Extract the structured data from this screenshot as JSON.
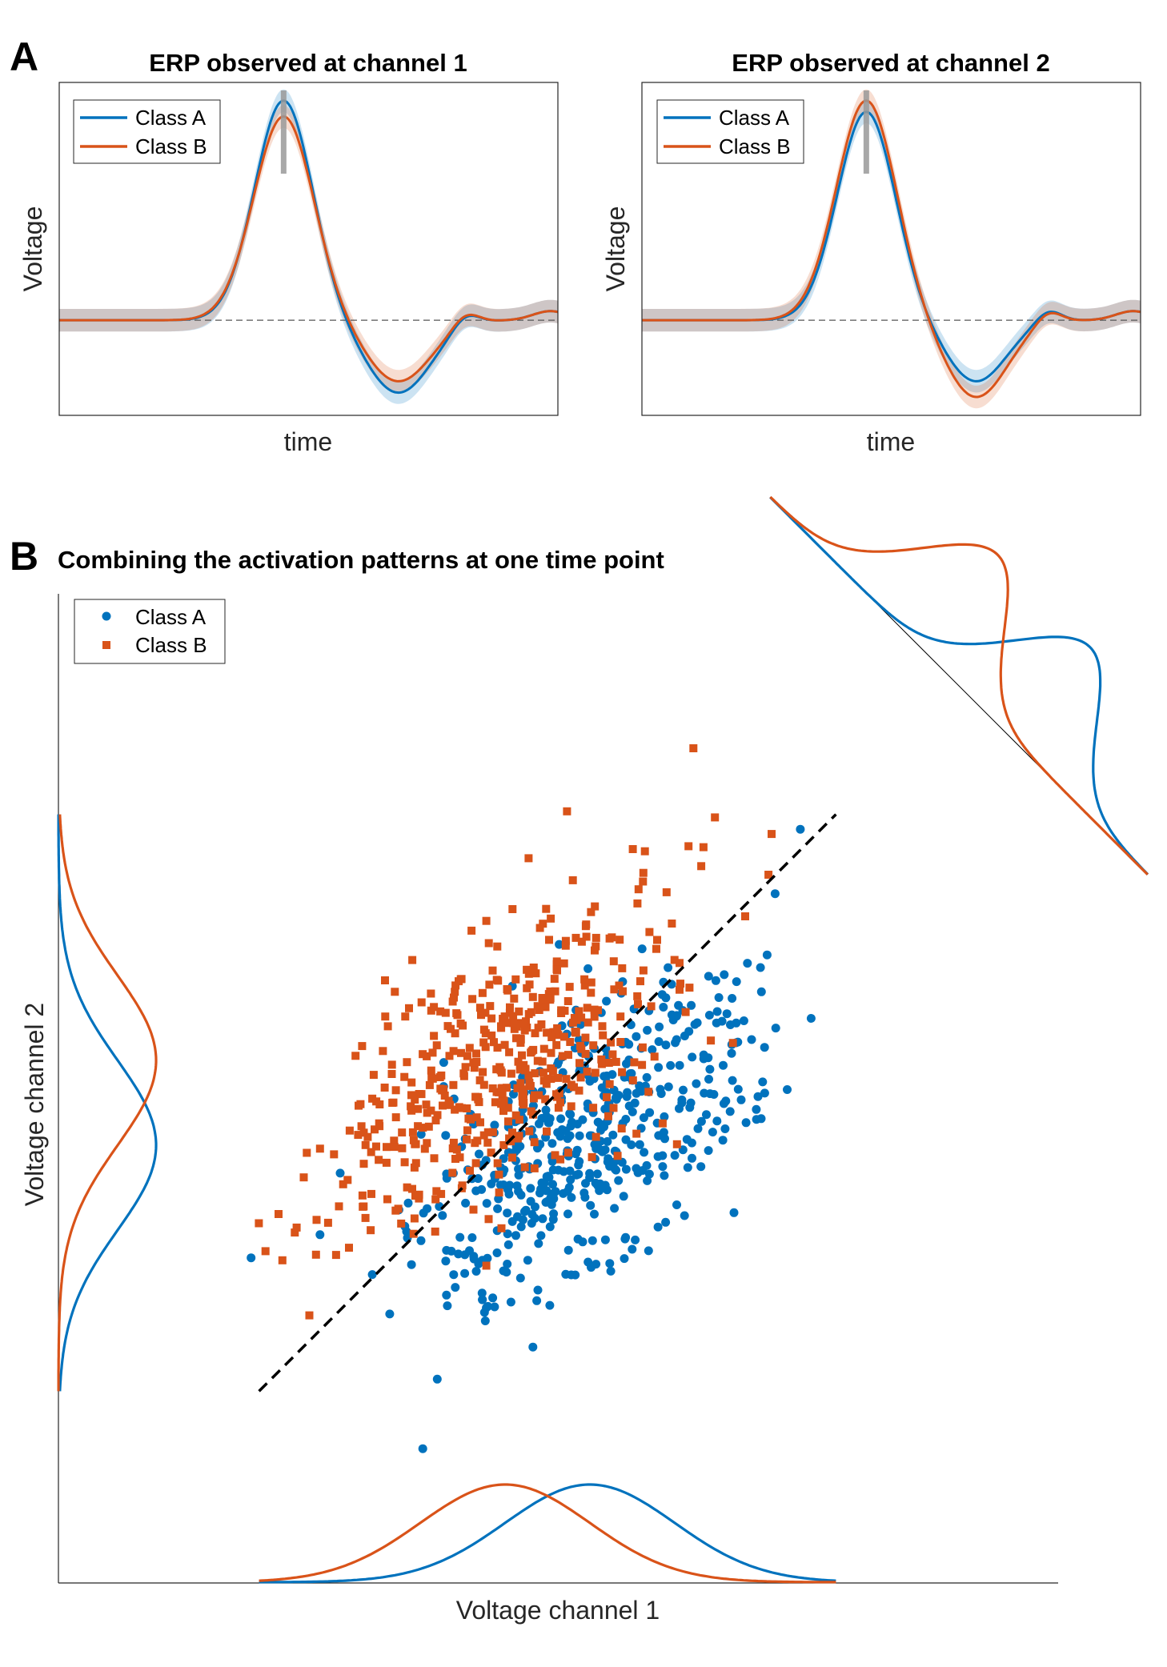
{
  "figure": {
    "panel_a": {
      "letter": "A",
      "charts": [
        {
          "title": "ERP observed at channel 1",
          "xlabel": "time",
          "ylabel": "Voltage"
        },
        {
          "title": "ERP observed at channel 2",
          "xlabel": "time",
          "ylabel": "Voltage"
        }
      ]
    },
    "panel_b": {
      "letter": "B",
      "title": "Combining the activation patterns at one time point",
      "xlabel": "Voltage channel 1",
      "ylabel": "Voltage channel 2"
    }
  },
  "colors": {
    "class_a": "#0072BD",
    "class_b": "#D95319",
    "marker_line": "#999999",
    "baseline": "#555555"
  },
  "chart_data": [
    {
      "type": "line",
      "title": "ERP observed at channel 1",
      "xlabel": "time",
      "ylabel": "Voltage",
      "x_ticks_shown": false,
      "y_ticks_shown": false,
      "xlim": [
        0,
        1
      ],
      "ylim": [
        -0.42,
        1.05
      ],
      "grid": false,
      "legend": "top-left",
      "baseline": 0,
      "marker_time": 0.45,
      "series": [
        {
          "name": "Class A",
          "color": "#0072BD",
          "peaks": [
            {
              "t": 0.45,
              "amp": 0.97,
              "width": 0.058
            },
            {
              "t": 0.68,
              "amp": -0.32,
              "width": 0.065
            },
            {
              "t": 0.815,
              "amp": 0.05,
              "width": 0.025
            },
            {
              "t": 0.985,
              "amp": 0.04,
              "width": 0.035
            }
          ],
          "band": 0.05
        },
        {
          "name": "Class B",
          "color": "#D95319",
          "peaks": [
            {
              "t": 0.45,
              "amp": 0.9,
              "width": 0.06
            },
            {
              "t": 0.68,
              "amp": -0.27,
              "width": 0.065
            },
            {
              "t": 0.815,
              "amp": 0.05,
              "width": 0.025
            },
            {
              "t": 0.985,
              "amp": 0.04,
              "width": 0.035
            }
          ],
          "band": 0.05
        }
      ]
    },
    {
      "type": "line",
      "title": "ERP observed at channel 2",
      "xlabel": "time",
      "ylabel": "Voltage",
      "x_ticks_shown": false,
      "y_ticks_shown": false,
      "xlim": [
        0,
        1
      ],
      "ylim": [
        -0.42,
        1.05
      ],
      "grid": false,
      "legend": "top-left",
      "baseline": 0,
      "marker_time": 0.45,
      "series": [
        {
          "name": "Class A",
          "color": "#0072BD",
          "peaks": [
            {
              "t": 0.45,
              "amp": 0.92,
              "width": 0.058
            },
            {
              "t": 0.67,
              "amp": -0.27,
              "width": 0.06
            },
            {
              "t": 0.815,
              "amp": 0.05,
              "width": 0.025
            },
            {
              "t": 0.985,
              "amp": 0.04,
              "width": 0.035
            }
          ],
          "band": 0.05
        },
        {
          "name": "Class B",
          "color": "#D95319",
          "peaks": [
            {
              "t": 0.45,
              "amp": 0.97,
              "width": 0.06
            },
            {
              "t": 0.67,
              "amp": -0.34,
              "width": 0.062
            },
            {
              "t": 0.815,
              "amp": 0.05,
              "width": 0.025
            },
            {
              "t": 0.985,
              "amp": 0.04,
              "width": 0.035
            }
          ],
          "band": 0.05
        }
      ]
    },
    {
      "type": "scatter",
      "title": "Combining the activation patterns at one time point",
      "xlabel": "Voltage channel 1",
      "ylabel": "Voltage channel 2",
      "x_ticks_shown": false,
      "y_ticks_shown": false,
      "xlim": [
        -4.3,
        4.3
      ],
      "ylim": [
        -4.3,
        4.3
      ],
      "legend": "top-left",
      "decision_boundary": {
        "from": [
          -3.4,
          -3.4
        ],
        "to": [
          3.4,
          3.4
        ],
        "style": "dashed"
      },
      "series": [
        {
          "name": "Class A",
          "color": "#0072BD",
          "marker": "circle",
          "n": 500,
          "mean": [
            0.5,
            -0.5
          ],
          "sd": [
            1.0,
            1.0
          ],
          "corr": 0.62
        },
        {
          "name": "Class B",
          "color": "#D95319",
          "marker": "square",
          "n": 500,
          "mean": [
            -0.5,
            0.5
          ],
          "sd": [
            1.0,
            1.0
          ],
          "corr": 0.62
        }
      ],
      "marginals": {
        "x": [
          {
            "name": "Class A",
            "mean": 0.5,
            "sd": 1.0
          },
          {
            "name": "Class B",
            "mean": -0.5,
            "sd": 1.0
          }
        ],
        "y": [
          {
            "name": "Class A",
            "mean": -0.5,
            "sd": 1.0
          },
          {
            "name": "Class B",
            "mean": 0.5,
            "sd": 1.0
          }
        ],
        "projection": [
          {
            "name": "Class A",
            "mean": 0.71,
            "sd": 0.62
          },
          {
            "name": "Class B",
            "mean": -0.71,
            "sd": 0.62
          }
        ]
      }
    }
  ]
}
